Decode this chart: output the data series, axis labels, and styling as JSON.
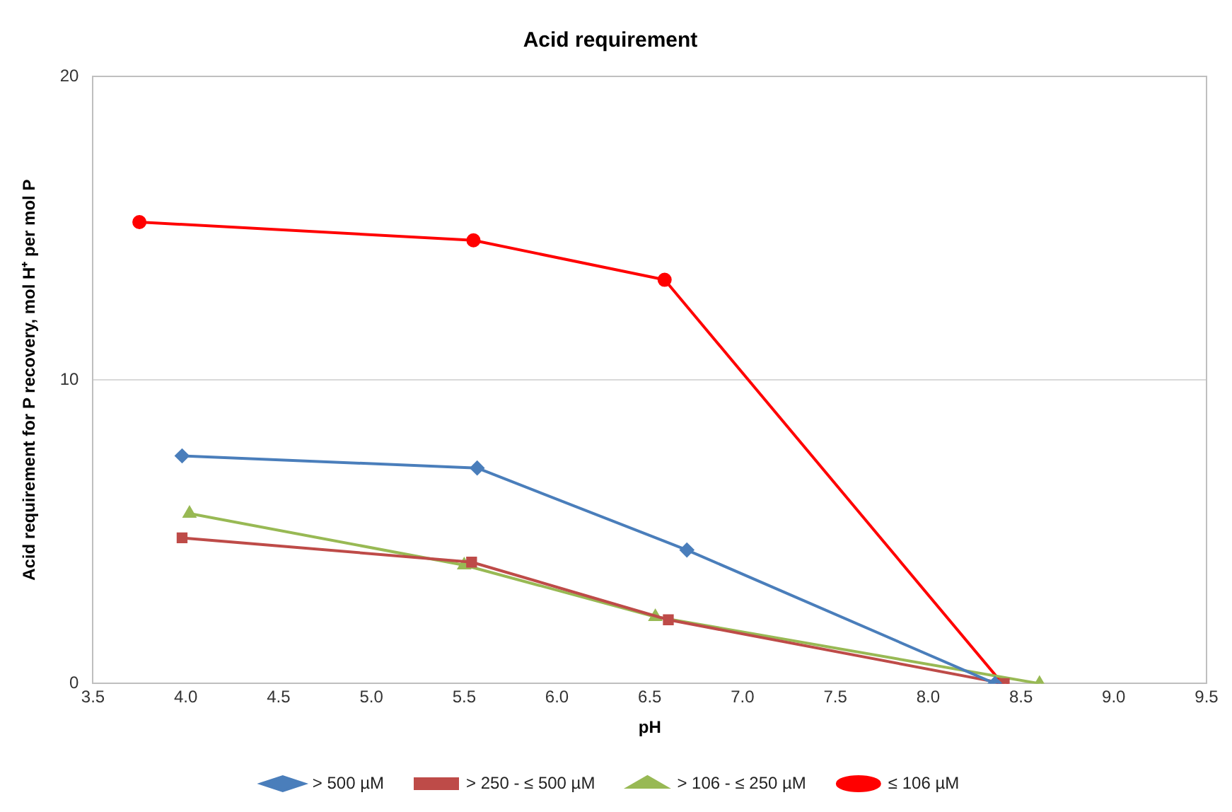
{
  "chart_data": {
    "type": "line",
    "title": "Acid requirement",
    "xlabel": "pH",
    "ylabel": "Acid requirement for P recovery, mol H⁺ per mol P",
    "xlim": [
      3.5,
      9.5
    ],
    "xticks": [
      {
        "value": 3.5,
        "label": "3.5"
      },
      {
        "value": 4,
        "label": "4.0"
      },
      {
        "value": 4.5,
        "label": "4.5"
      },
      {
        "value": 5,
        "label": "5.0"
      },
      {
        "value": 5.5,
        "label": "5.5"
      },
      {
        "value": 6,
        "label": "6.0"
      },
      {
        "value": 6.5,
        "label": "6.5"
      },
      {
        "value": 7,
        "label": "7.0"
      },
      {
        "value": 7.5,
        "label": "7.5"
      },
      {
        "value": 8,
        "label": "8.0"
      },
      {
        "value": 8.5,
        "label": "8.5"
      },
      {
        "value": 9,
        "label": "9.0"
      },
      {
        "value": 9.5,
        "label": "9.5"
      }
    ],
    "ylim": [
      0,
      20
    ],
    "yticks": [
      0,
      10,
      20
    ],
    "grid": "y",
    "legend": "bottom",
    "line_style": "solid",
    "series": [
      {
        "name": "> 500 µM",
        "color": "#4a7ebb",
        "marker": "diamond",
        "x": [
          3.98,
          5.57,
          6.7,
          8.36
        ],
        "values": [
          7.5,
          7.1,
          4.4,
          0
        ]
      },
      {
        "name": "> 250 - ≤ 500 µM",
        "color": "#be4b48",
        "marker": "square",
        "x": [
          3.98,
          5.54,
          6.6,
          8.41
        ],
        "values": [
          4.8,
          4.0,
          2.1,
          0
        ]
      },
      {
        "name": "> 106 - ≤ 250 µM",
        "color": "#98b954",
        "marker": "triangle",
        "x": [
          4.02,
          5.5,
          6.53,
          8.6
        ],
        "values": [
          5.6,
          3.9,
          2.2,
          0
        ]
      },
      {
        "name": "≤ 106 µM",
        "color": "#ff0000",
        "marker": "circle",
        "x": [
          3.75,
          5.55,
          6.58,
          8.4
        ],
        "values": [
          15.2,
          14.6,
          13.3,
          0
        ]
      }
    ]
  }
}
